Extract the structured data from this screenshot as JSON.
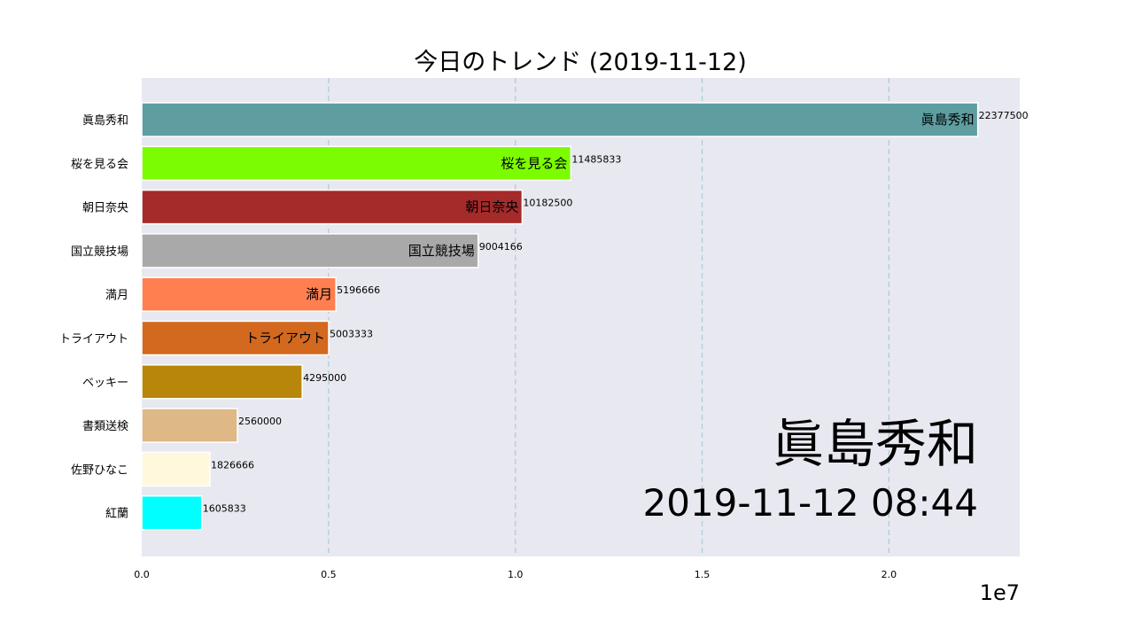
{
  "chart_data": {
    "type": "bar",
    "orientation": "horizontal",
    "title": "今日のトレンド (2019-11-12)",
    "xlim": [
      0,
      23500000
    ],
    "x_ticks": [
      {
        "value": 0,
        "label": "0.0"
      },
      {
        "value": 5000000,
        "label": "0.5"
      },
      {
        "value": 10000000,
        "label": "1.0"
      },
      {
        "value": 15000000,
        "label": "1.5"
      },
      {
        "value": 20000000,
        "label": "2.0"
      }
    ],
    "x_exponent_label": "1e7",
    "grid": "x-dashed",
    "background": "#e8e8f0",
    "bars": [
      {
        "category": "眞島秀和",
        "value": 22377500,
        "value_label": "22377500",
        "color": "#5f9ea0",
        "show_inner_label": true
      },
      {
        "category": "桜を見る会",
        "value": 11485833,
        "value_label": "11485833",
        "color": "#7cfc00",
        "show_inner_label": true
      },
      {
        "category": "朝日奈央",
        "value": 10182500,
        "value_label": "10182500",
        "color": "#a52a2a",
        "show_inner_label": true
      },
      {
        "category": "国立競技場",
        "value": 9004166,
        "value_label": "9004166",
        "color": "#a9a9a9",
        "show_inner_label": true
      },
      {
        "category": "満月",
        "value": 5196666,
        "value_label": "5196666",
        "color": "#ff7f50",
        "show_inner_label": true
      },
      {
        "category": "トライアウト",
        "value": 5003333,
        "value_label": "5003333",
        "color": "#d2691e",
        "show_inner_label": true
      },
      {
        "category": "ベッキー",
        "value": 4295000,
        "value_label": "4295000",
        "color": "#b8860b",
        "show_inner_label": false
      },
      {
        "category": "書類送検",
        "value": 2560000,
        "value_label": "2560000",
        "color": "#deb887",
        "show_inner_label": false
      },
      {
        "category": "佐野ひなこ",
        "value": 1826666,
        "value_label": "1826666",
        "color": "#fff8dc",
        "show_inner_label": false
      },
      {
        "category": "紅蘭",
        "value": 1605833,
        "value_label": "1605833",
        "color": "#00ffff",
        "show_inner_label": false
      }
    ],
    "annotations": {
      "leader": "眞島秀和",
      "timestamp": "2019-11-12 08:44"
    }
  }
}
